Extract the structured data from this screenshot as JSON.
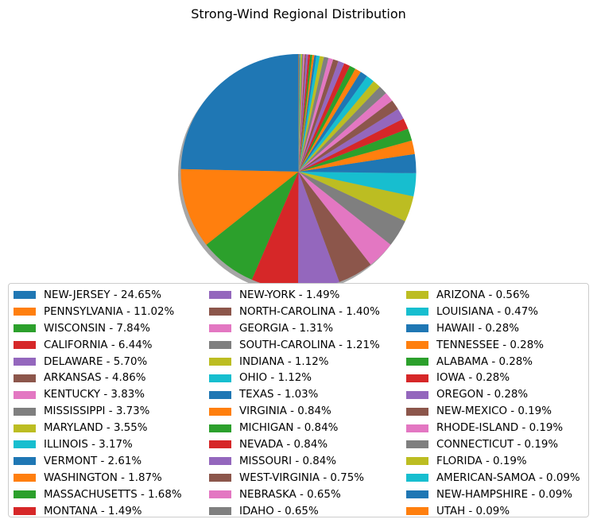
{
  "chart_data": {
    "type": "pie",
    "title": "Strong-Wind Regional Distribution",
    "startangle": 90,
    "shadow": true,
    "slice_labels": [],
    "colors": [
      "#1f77b4",
      "#ff7f0e",
      "#2ca02c",
      "#d62728",
      "#9467bd",
      "#8c564b",
      "#e377c2",
      "#7f7f7f",
      "#bcbd22",
      "#17becf"
    ],
    "slices": [
      {
        "label": "NEW-JERSEY - 24.65%",
        "value": 24.65
      },
      {
        "label": "PENNSYLVANIA - 11.02%",
        "value": 11.02
      },
      {
        "label": "WISCONSIN - 7.84%",
        "value": 7.84
      },
      {
        "label": "CALIFORNIA - 6.44%",
        "value": 6.44
      },
      {
        "label": "DELAWARE - 5.70%",
        "value": 5.7
      },
      {
        "label": "ARKANSAS - 4.86%",
        "value": 4.86
      },
      {
        "label": "KENTUCKY - 3.83%",
        "value": 3.83
      },
      {
        "label": "MISSISSIPPI - 3.73%",
        "value": 3.73
      },
      {
        "label": "MARYLAND - 3.55%",
        "value": 3.55
      },
      {
        "label": "ILLINOIS - 3.17%",
        "value": 3.17
      },
      {
        "label": "VERMONT - 2.61%",
        "value": 2.61
      },
      {
        "label": "WASHINGTON - 1.87%",
        "value": 1.87
      },
      {
        "label": "MASSACHUSETTS - 1.68%",
        "value": 1.68
      },
      {
        "label": "MONTANA - 1.49%",
        "value": 1.49
      },
      {
        "label": "NEW-YORK - 1.49%",
        "value": 1.49
      },
      {
        "label": "NORTH-CAROLINA - 1.40%",
        "value": 1.4
      },
      {
        "label": "GEORGIA - 1.31%",
        "value": 1.31
      },
      {
        "label": "SOUTH-CAROLINA - 1.21%",
        "value": 1.21
      },
      {
        "label": "INDIANA - 1.12%",
        "value": 1.12
      },
      {
        "label": "OHIO - 1.12%",
        "value": 1.12
      },
      {
        "label": "TEXAS - 1.03%",
        "value": 1.03
      },
      {
        "label": "VIRGINIA - 0.84%",
        "value": 0.84
      },
      {
        "label": "MICHIGAN - 0.84%",
        "value": 0.84
      },
      {
        "label": "NEVADA - 0.84%",
        "value": 0.84
      },
      {
        "label": "MISSOURI - 0.84%",
        "value": 0.84
      },
      {
        "label": "WEST-VIRGINIA - 0.75%",
        "value": 0.75
      },
      {
        "label": "NEBRASKA - 0.65%",
        "value": 0.65
      },
      {
        "label": "IDAHO - 0.65%",
        "value": 0.65
      },
      {
        "label": "ARIZONA - 0.56%",
        "value": 0.56
      },
      {
        "label": "LOUISIANA - 0.47%",
        "value": 0.47
      },
      {
        "label": "HAWAII - 0.28%",
        "value": 0.28
      },
      {
        "label": "TENNESSEE - 0.28%",
        "value": 0.28
      },
      {
        "label": "ALABAMA - 0.28%",
        "value": 0.28
      },
      {
        "label": "IOWA - 0.28%",
        "value": 0.28
      },
      {
        "label": "OREGON - 0.28%",
        "value": 0.28
      },
      {
        "label": "NEW-MEXICO - 0.19%",
        "value": 0.19
      },
      {
        "label": "RHODE-ISLAND - 0.19%",
        "value": 0.19
      },
      {
        "label": "CONNECTICUT - 0.19%",
        "value": 0.19
      },
      {
        "label": "FLORIDA - 0.19%",
        "value": 0.19
      },
      {
        "label": "AMERICAN-SAMOA - 0.09%",
        "value": 0.09
      },
      {
        "label": "NEW-HAMPSHIRE - 0.09%",
        "value": 0.09
      },
      {
        "label": "UTAH - 0.09%",
        "value": 0.09
      }
    ],
    "legend": {
      "placement": "below",
      "columns": 3
    }
  }
}
